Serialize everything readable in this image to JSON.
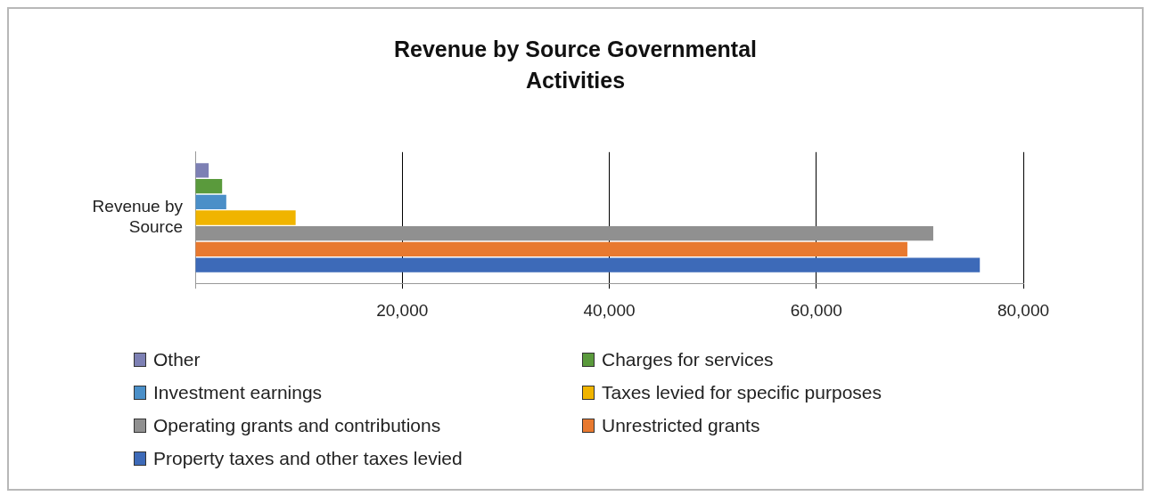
{
  "chart_data": {
    "type": "bar",
    "orientation": "horizontal",
    "title": "Revenue by Source Governmental Activities",
    "categories": [
      "Revenue by Source"
    ],
    "series": [
      {
        "name": "Other",
        "color": "#7d80b4",
        "values": [
          1300
        ]
      },
      {
        "name": "Charges for services",
        "color": "#5a9a3c",
        "values": [
          2600
        ]
      },
      {
        "name": "Investment earnings",
        "color": "#4a8fc8",
        "values": [
          3000
        ]
      },
      {
        "name": "Taxes levied for specific purposes",
        "color": "#f0b400",
        "values": [
          9700
        ]
      },
      {
        "name": "Operating grants and contributions",
        "color": "#909090",
        "values": [
          71300
        ]
      },
      {
        "name": "Unrestricted grants",
        "color": "#e8792f",
        "values": [
          68800
        ]
      },
      {
        "name": "Property taxes and other taxes levied",
        "color": "#3d6ab8",
        "values": [
          75800
        ]
      }
    ],
    "xlim": [
      0,
      80000
    ],
    "xticks": [
      {
        "value": 0,
        "label": null
      },
      {
        "value": 20000,
        "label": "20,000"
      },
      {
        "value": 40000,
        "label": "40,000"
      },
      {
        "value": 60000,
        "label": "60,000"
      },
      {
        "value": 80000,
        "label": "80,000"
      }
    ],
    "grid": "x",
    "legend": "bottom"
  }
}
